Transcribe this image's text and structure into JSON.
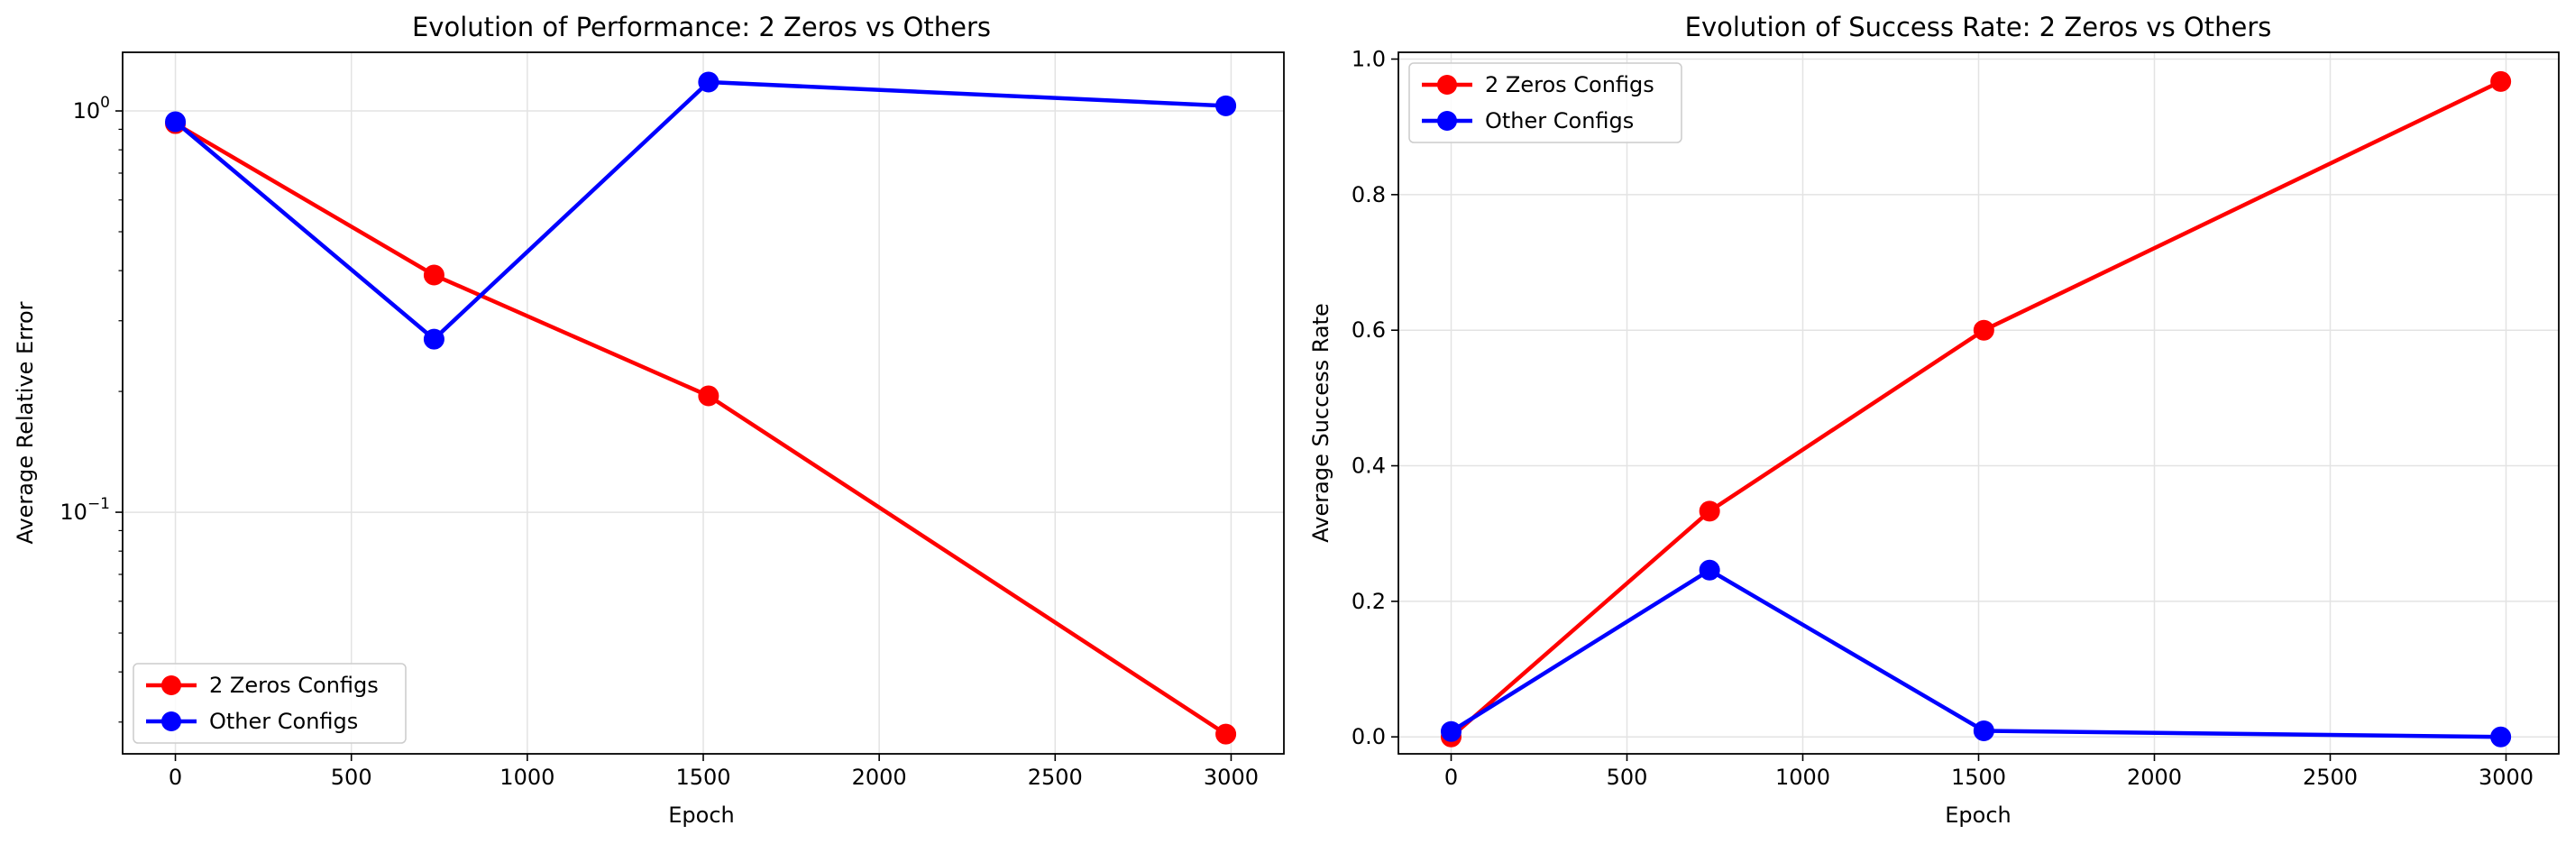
{
  "colors": {
    "series_a": "#ff0000",
    "series_b": "#0000ff",
    "grid": "#e3e3e3"
  },
  "chart_data": [
    {
      "type": "line",
      "title": "Evolution of Performance: 2 Zeros vs Others",
      "xlabel": "Epoch",
      "ylabel": "Average Relative Error",
      "yscale": "log",
      "xlim": [
        -150,
        3150
      ],
      "ylim": [
        0.025,
        1.4
      ],
      "xticks": [
        0,
        500,
        1000,
        1500,
        2000,
        2500,
        3000
      ],
      "yticks": [
        0.1,
        1
      ],
      "ytick_labels": [
        {
          "base": "10",
          "exp": "−1"
        },
        {
          "base": "10",
          "exp": "0"
        }
      ],
      "grid": true,
      "legend_position": "lower-left",
      "x": [
        0,
        735,
        1515,
        2985
      ],
      "series": [
        {
          "name": "2 Zeros Configs",
          "color": "#ff0000",
          "values": [
            0.93,
            0.39,
            0.195,
            0.028
          ]
        },
        {
          "name": "Other Configs",
          "color": "#0000ff",
          "values": [
            0.94,
            0.27,
            1.18,
            1.03
          ]
        }
      ]
    },
    {
      "type": "line",
      "title": "Evolution of Success Rate: 2 Zeros vs Others",
      "xlabel": "Epoch",
      "ylabel": "Average Success Rate",
      "yscale": "linear",
      "xlim": [
        -150,
        3150
      ],
      "ylim": [
        -0.025,
        1.01
      ],
      "xticks": [
        0,
        500,
        1000,
        1500,
        2000,
        2500,
        3000
      ],
      "yticks": [
        0.0,
        0.2,
        0.4,
        0.6,
        0.8,
        1.0
      ],
      "ytick_labels": [
        "0.0",
        "0.2",
        "0.4",
        "0.6",
        "0.8",
        "1.0"
      ],
      "grid": true,
      "legend_position": "upper-left",
      "x": [
        0,
        735,
        1515,
        2985
      ],
      "series": [
        {
          "name": "2 Zeros Configs",
          "color": "#ff0000",
          "values": [
            0.0,
            0.333,
            0.6,
            0.967
          ]
        },
        {
          "name": "Other Configs",
          "color": "#0000ff",
          "values": [
            0.008,
            0.246,
            0.009,
            0.0
          ]
        }
      ]
    }
  ]
}
